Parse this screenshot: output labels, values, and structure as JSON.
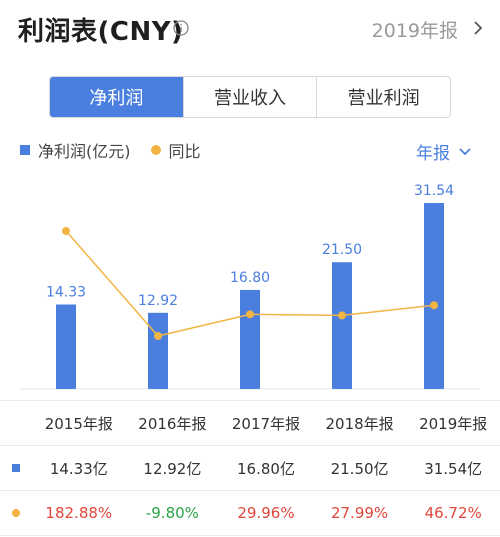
{
  "header": {
    "title": "利润表(CNY)",
    "period_label": "2019年报"
  },
  "tabs": [
    {
      "label": "净利润",
      "active": true
    },
    {
      "label": "营业收入",
      "active": false
    },
    {
      "label": "营业利润",
      "active": false
    }
  ],
  "legend": {
    "bar_label": "净利润(亿元)",
    "line_label": "同比"
  },
  "period_select": {
    "label": "年报"
  },
  "colors": {
    "bar": "#4a7fe0",
    "line": "#f2b544",
    "positive": "#e0473a",
    "negative": "#2aa54a"
  },
  "chart_data": {
    "type": "bar",
    "categories": [
      "2015年报",
      "2016年报",
      "2017年报",
      "2018年报",
      "2019年报"
    ],
    "series": [
      {
        "name": "净利润(亿元)",
        "type": "bar",
        "values": [
          14.33,
          12.92,
          16.8,
          21.5,
          31.54
        ],
        "labels": [
          "14.33",
          "12.92",
          "16.80",
          "21.50",
          "31.54"
        ]
      },
      {
        "name": "同比",
        "type": "line",
        "values": [
          182.88,
          -9.8,
          29.96,
          27.99,
          46.72
        ]
      }
    ]
  },
  "table": {
    "headers": [
      "2015年报",
      "2016年报",
      "2017年报",
      "2018年报",
      "2019年报"
    ],
    "profit_row": [
      "14.33亿",
      "12.92亿",
      "16.80亿",
      "21.50亿",
      "31.54亿"
    ],
    "yoy_row": [
      "182.88%",
      "-9.80%",
      "29.96%",
      "27.99%",
      "46.72%"
    ]
  }
}
